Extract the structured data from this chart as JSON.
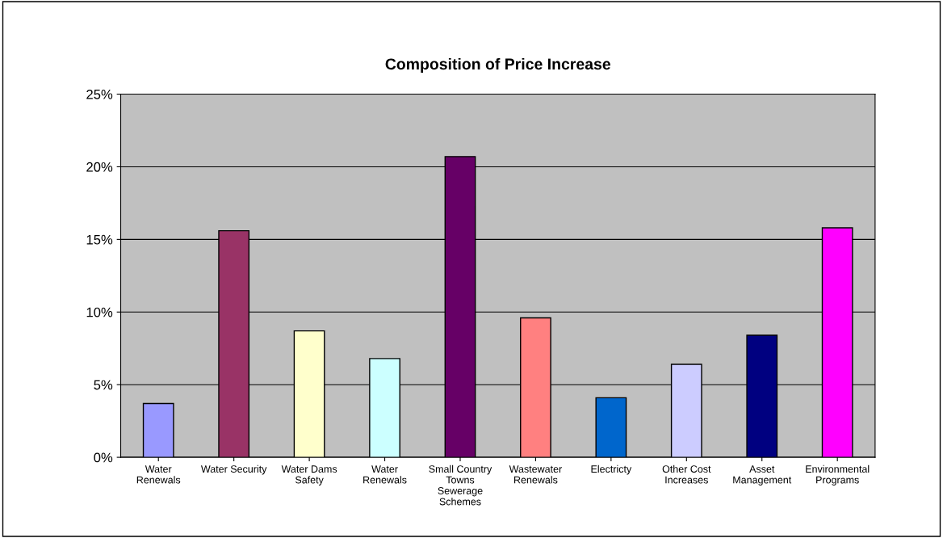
{
  "chart_data": {
    "type": "bar",
    "title": "Composition of Price Increase",
    "categories": [
      "Water\nRenewals",
      "Water Security",
      "Water Dams\nSafety",
      "Water\nRenewals",
      "Small Country\nTowns\nSewerage\nSchemes",
      "Wastewater\nRenewals",
      "Electricty",
      "Other Cost\nIncreases",
      "Asset\nManagement",
      "Environmental\nPrograms"
    ],
    "values": [
      3.7,
      15.6,
      8.7,
      6.8,
      20.7,
      9.6,
      4.1,
      6.4,
      8.4,
      15.8
    ],
    "colors": [
      "#9999ff",
      "#993366",
      "#ffffcc",
      "#ccffff",
      "#660066",
      "#ff8080",
      "#0066cc",
      "#ccccff",
      "#000080",
      "#ff00ff"
    ],
    "ylim": [
      0,
      25
    ],
    "yticks": [
      {
        "value": 0,
        "label": "0%"
      },
      {
        "value": 5,
        "label": "5%"
      },
      {
        "value": 10,
        "label": "10%"
      },
      {
        "value": 15,
        "label": "15%"
      },
      {
        "value": 20,
        "label": "20%"
      },
      {
        "value": 25,
        "label": "25%"
      }
    ],
    "grid": "y",
    "legend": false
  }
}
